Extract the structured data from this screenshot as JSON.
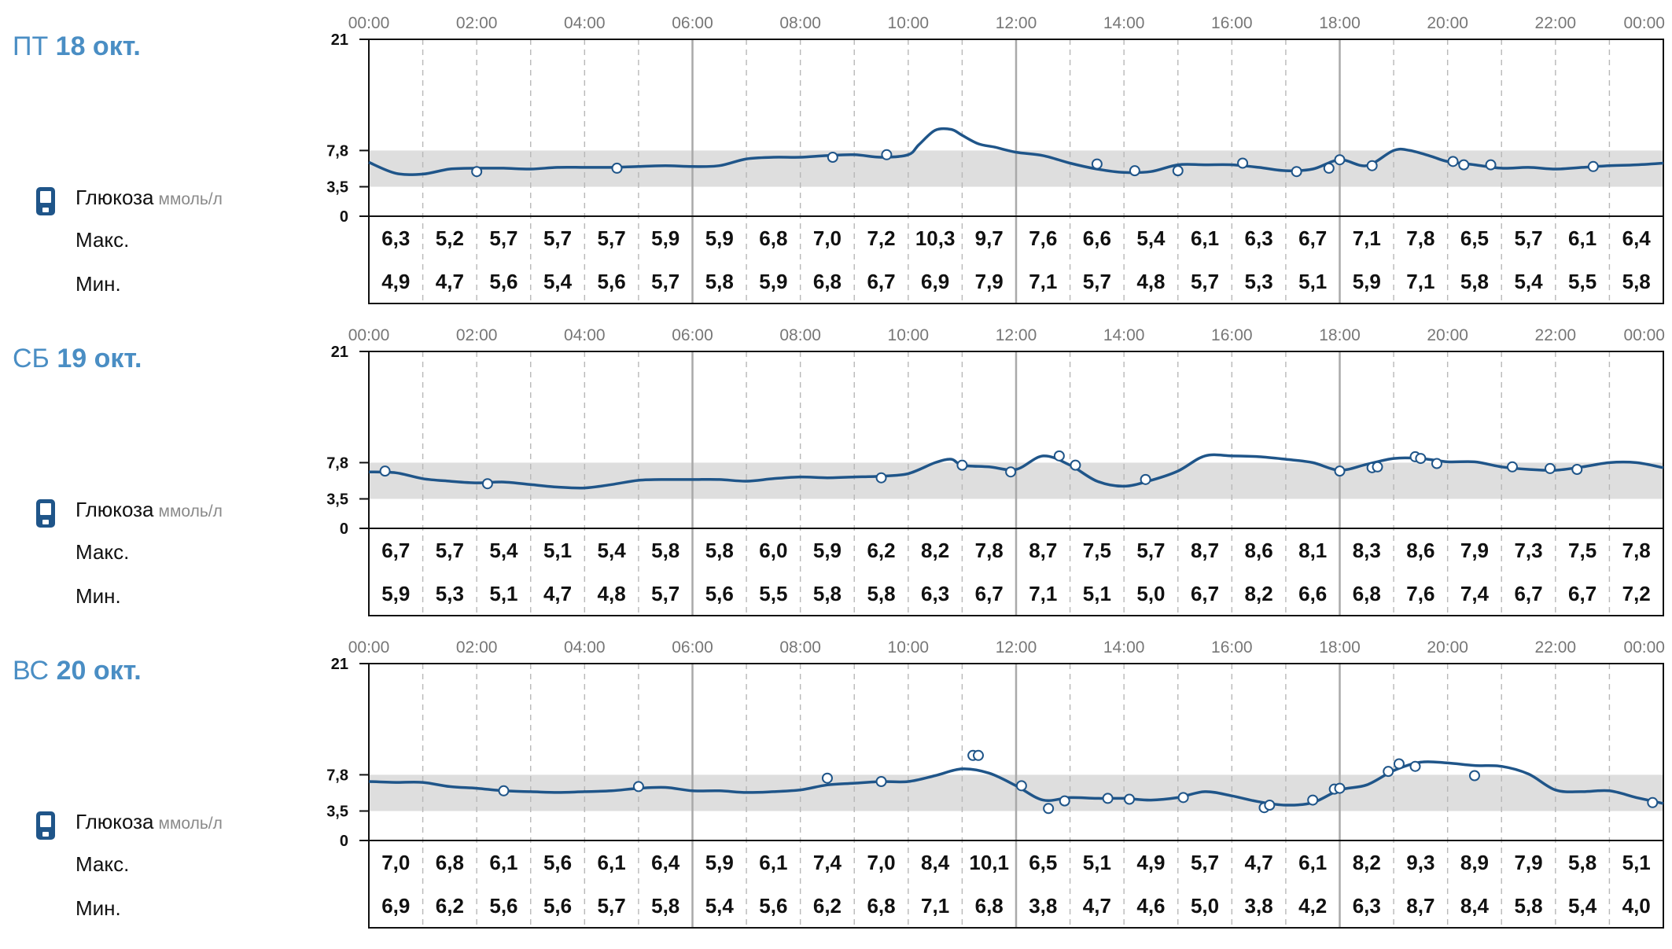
{
  "glucose_label": "Глюкоза",
  "glucose_unit": "ммоль/л",
  "max_label": "Макс.",
  "min_label": "Мин.",
  "colors": {
    "title": "#4a8ec4",
    "line": "#1f5589",
    "range_band": "#dedede",
    "grid": "#b8b8b8",
    "axis": "#111111"
  },
  "days": [
    {
      "weekday": "ПТ",
      "date": "18 окт.",
      "chart_data": {
        "type": "line",
        "x_ticks": [
          "00:00",
          "02:00",
          "04:00",
          "06:00",
          "08:00",
          "10:00",
          "12:00",
          "14:00",
          "16:00",
          "18:00",
          "20:00",
          "22:00",
          "00:00"
        ],
        "y_ticks": [
          {
            "value": 21,
            "label": "21"
          },
          {
            "value": 7.8,
            "label": "7,8"
          },
          {
            "value": 3.5,
            "label": "3,5"
          },
          {
            "value": 0,
            "label": "0"
          }
        ],
        "ylim": [
          0,
          21
        ],
        "target_range": [
          3.5,
          7.8
        ],
        "series": [
          {
            "x": [
              0,
              0.5,
              1,
              1.5,
              2,
              2.5,
              3,
              3.5,
              4,
              4.5,
              5,
              5.5,
              6,
              6.5,
              7,
              7.5,
              8,
              8.5,
              9,
              9.5,
              10,
              10.2,
              10.5,
              10.8,
              11,
              11.3,
              11.6,
              12,
              12.5,
              13,
              13.5,
              14,
              14.5,
              15,
              15.5,
              16,
              16.5,
              17,
              17.5,
              18,
              18.5,
              19,
              19.3,
              19.7,
              20,
              20.5,
              21,
              21.5,
              22,
              22.5,
              23,
              23.5,
              24
            ],
            "y": [
              6.4,
              5.1,
              5.0,
              5.6,
              5.7,
              5.7,
              5.6,
              5.8,
              5.8,
              5.8,
              5.9,
              6.0,
              5.9,
              6.0,
              6.8,
              7.0,
              7.0,
              7.2,
              7.3,
              7.0,
              7.3,
              8.5,
              10.2,
              10.3,
              9.6,
              8.6,
              8.2,
              7.6,
              7.2,
              6.3,
              5.6,
              5.2,
              5.3,
              6.1,
              6.1,
              6.1,
              5.8,
              5.4,
              5.6,
              6.7,
              6.0,
              7.8,
              7.8,
              7.1,
              6.5,
              6.1,
              5.7,
              5.8,
              5.6,
              5.8,
              6.0,
              6.1,
              6.3
            ]
          }
        ],
        "markers": [
          [
            2.0,
            5.3
          ],
          [
            4.6,
            5.7
          ],
          [
            8.6,
            7.0
          ],
          [
            9.6,
            7.3
          ],
          [
            13.5,
            6.2
          ],
          [
            14.2,
            5.4
          ],
          [
            15,
            5.4
          ],
          [
            16.2,
            6.3
          ],
          [
            17.2,
            5.3
          ],
          [
            17.8,
            5.7
          ],
          [
            18,
            6.7
          ],
          [
            18.6,
            6.0
          ],
          [
            20.1,
            6.5
          ],
          [
            20.3,
            6.1
          ],
          [
            20.8,
            6.1
          ],
          [
            22.7,
            5.9
          ]
        ],
        "max": [
          "6,3",
          "5,2",
          "5,7",
          "5,7",
          "5,7",
          "5,9",
          "5,9",
          "6,8",
          "7,0",
          "7,2",
          "10,3",
          "9,7",
          "7,6",
          "6,6",
          "5,4",
          "6,1",
          "6,3",
          "6,7",
          "7,1",
          "7,8",
          "6,5",
          "5,7",
          "6,1",
          "6,4"
        ],
        "min": [
          "4,9",
          "4,7",
          "5,6",
          "5,4",
          "5,6",
          "5,7",
          "5,8",
          "5,9",
          "6,8",
          "6,7",
          "6,9",
          "7,9",
          "7,1",
          "5,7",
          "4,8",
          "5,7",
          "5,3",
          "5,1",
          "5,9",
          "7,1",
          "5,8",
          "5,4",
          "5,5",
          "5,8"
        ]
      }
    },
    {
      "weekday": "СБ",
      "date": "19 окт.",
      "chart_data": {
        "type": "line",
        "x_ticks": [
          "00:00",
          "02:00",
          "04:00",
          "06:00",
          "08:00",
          "10:00",
          "12:00",
          "14:00",
          "16:00",
          "18:00",
          "20:00",
          "22:00",
          "00:00"
        ],
        "y_ticks": [
          {
            "value": 21,
            "label": "21"
          },
          {
            "value": 7.8,
            "label": "7,8"
          },
          {
            "value": 3.5,
            "label": "3,5"
          },
          {
            "value": 0,
            "label": "0"
          }
        ],
        "ylim": [
          0,
          21
        ],
        "target_range": [
          3.5,
          7.8
        ],
        "series": [
          {
            "x": [
              0,
              0.5,
              1,
              1.5,
              2,
              2.5,
              3,
              3.5,
              4,
              4.5,
              5,
              5.5,
              6,
              6.5,
              7,
              7.5,
              8,
              8.5,
              9,
              9.5,
              10,
              10.5,
              10.8,
              11,
              11.5,
              12,
              12.5,
              13,
              13.5,
              14,
              14.5,
              15,
              15.5,
              16,
              16.5,
              17,
              17.5,
              18,
              18.5,
              19,
              19.5,
              20,
              20.5,
              21,
              21.5,
              22,
              22.5,
              23,
              23.5,
              24
            ],
            "y": [
              6.7,
              6.6,
              5.9,
              5.6,
              5.4,
              5.5,
              5.2,
              4.9,
              4.8,
              5.2,
              5.7,
              5.8,
              5.8,
              5.8,
              5.6,
              5.9,
              6.1,
              6.0,
              6.1,
              6.2,
              6.5,
              7.8,
              8.2,
              7.5,
              7.3,
              7.0,
              8.6,
              7.5,
              5.6,
              5.0,
              5.7,
              6.8,
              8.6,
              8.6,
              8.5,
              8.2,
              7.8,
              6.9,
              7.6,
              8.3,
              8.3,
              7.9,
              7.9,
              7.3,
              7.0,
              6.9,
              7.3,
              7.8,
              7.8,
              7.2
            ]
          }
        ],
        "markers": [
          [
            0.3,
            6.8
          ],
          [
            2.2,
            5.3
          ],
          [
            9.5,
            6.0
          ],
          [
            11.0,
            7.5
          ],
          [
            11.9,
            6.7
          ],
          [
            12.8,
            8.6
          ],
          [
            13.1,
            7.5
          ],
          [
            14.4,
            5.8
          ],
          [
            18,
            6.8
          ],
          [
            18.6,
            7.2
          ],
          [
            18.7,
            7.3
          ],
          [
            19.4,
            8.5
          ],
          [
            19.5,
            8.3
          ],
          [
            19.8,
            7.7
          ],
          [
            21.2,
            7.3
          ],
          [
            21.9,
            7.1
          ],
          [
            22.4,
            7.0
          ]
        ],
        "max": [
          "6,7",
          "5,7",
          "5,4",
          "5,1",
          "5,4",
          "5,8",
          "5,8",
          "6,0",
          "5,9",
          "6,2",
          "8,2",
          "7,8",
          "8,7",
          "7,5",
          "5,7",
          "8,7",
          "8,6",
          "8,1",
          "8,3",
          "8,6",
          "7,9",
          "7,3",
          "7,5",
          "7,8"
        ],
        "min": [
          "5,9",
          "5,3",
          "5,1",
          "4,7",
          "4,8",
          "5,7",
          "5,6",
          "5,5",
          "5,8",
          "5,8",
          "6,3",
          "6,7",
          "7,1",
          "5,1",
          "5,0",
          "6,7",
          "8,2",
          "6,6",
          "6,8",
          "7,6",
          "7,4",
          "6,7",
          "6,7",
          "7,2"
        ]
      }
    },
    {
      "weekday": "ВС",
      "date": "20 окт.",
      "chart_data": {
        "type": "line",
        "x_ticks": [
          "00:00",
          "02:00",
          "04:00",
          "06:00",
          "08:00",
          "10:00",
          "12:00",
          "14:00",
          "16:00",
          "18:00",
          "20:00",
          "22:00",
          "00:00"
        ],
        "y_ticks": [
          {
            "value": 21,
            "label": "21"
          },
          {
            "value": 7.8,
            "label": "7,8"
          },
          {
            "value": 3.5,
            "label": "3,5"
          },
          {
            "value": 0,
            "label": "0"
          }
        ],
        "ylim": [
          0,
          21
        ],
        "target_range": [
          3.5,
          7.8
        ],
        "series": [
          {
            "x": [
              0,
              0.5,
              1,
              1.5,
              2,
              2.5,
              3,
              3.5,
              4,
              4.5,
              5,
              5.5,
              6,
              6.5,
              7,
              7.5,
              8,
              8.5,
              9,
              9.5,
              10,
              10.5,
              11,
              11.5,
              12,
              12.5,
              13,
              13.5,
              14,
              14.5,
              15,
              15.5,
              16,
              16.5,
              17,
              17.5,
              18,
              18.5,
              19,
              19.5,
              20,
              20.5,
              21,
              21.5,
              22,
              22.5,
              23,
              23.5,
              24
            ],
            "y": [
              7.0,
              6.9,
              6.9,
              6.4,
              6.2,
              5.9,
              5.8,
              5.7,
              5.8,
              5.9,
              6.2,
              6.3,
              5.9,
              5.9,
              5.7,
              5.8,
              6.0,
              6.6,
              6.8,
              7.0,
              7.0,
              7.7,
              8.5,
              8.0,
              6.5,
              4.8,
              5.1,
              5.0,
              5.0,
              4.8,
              5.1,
              5.8,
              5.3,
              4.6,
              4.2,
              4.5,
              6.0,
              6.6,
              8.3,
              9.3,
              9.2,
              8.9,
              8.8,
              7.9,
              6.0,
              5.8,
              5.9,
              5.1,
              4.4
            ]
          }
        ],
        "markers": [
          [
            2.5,
            5.9
          ],
          [
            5.0,
            6.4
          ],
          [
            8.5,
            7.4
          ],
          [
            9.5,
            7.0
          ],
          [
            11.2,
            10.1
          ],
          [
            11.3,
            10.1
          ],
          [
            12.1,
            6.5
          ],
          [
            12.6,
            3.8
          ],
          [
            12.9,
            4.7
          ],
          [
            13.7,
            5.0
          ],
          [
            14.1,
            4.9
          ],
          [
            15.1,
            5.1
          ],
          [
            16.6,
            3.9
          ],
          [
            16.7,
            4.2
          ],
          [
            17.5,
            4.8
          ],
          [
            17.9,
            6.1
          ],
          [
            18.0,
            6.2
          ],
          [
            18.9,
            8.2
          ],
          [
            19.1,
            9.1
          ],
          [
            19.4,
            8.8
          ],
          [
            20.5,
            7.7
          ],
          [
            23.8,
            4.5
          ]
        ],
        "max": [
          "7,0",
          "6,8",
          "6,1",
          "5,6",
          "6,1",
          "6,4",
          "5,9",
          "6,1",
          "7,4",
          "7,0",
          "8,4",
          "10,1",
          "6,5",
          "5,1",
          "4,9",
          "5,7",
          "4,7",
          "6,1",
          "8,2",
          "9,3",
          "8,9",
          "7,9",
          "5,8",
          "5,1"
        ],
        "min": [
          "6,9",
          "6,2",
          "5,6",
          "5,6",
          "5,7",
          "5,8",
          "5,4",
          "5,6",
          "6,2",
          "6,8",
          "7,1",
          "6,8",
          "3,8",
          "4,7",
          "4,6",
          "5,0",
          "3,8",
          "4,2",
          "6,3",
          "8,7",
          "8,4",
          "5,8",
          "5,4",
          "4,0"
        ]
      }
    }
  ]
}
